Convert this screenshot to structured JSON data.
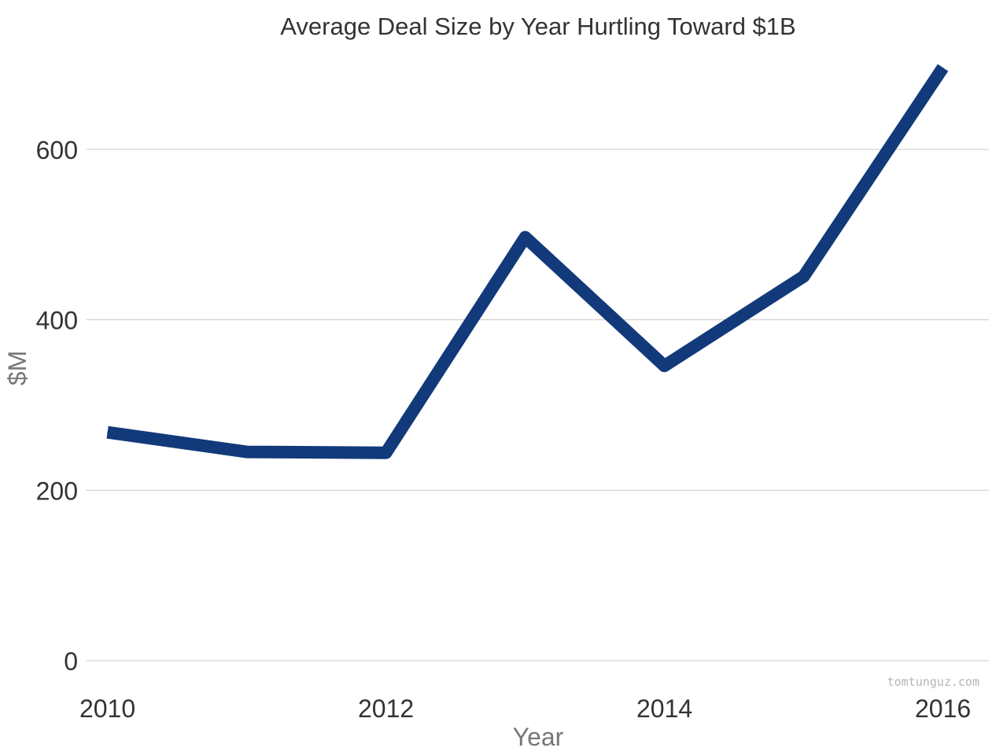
{
  "chart_data": {
    "type": "line",
    "title": "Average Deal Size by Year Hurtling Toward $1B",
    "xlabel": "Year",
    "ylabel": "$M",
    "x": [
      2010,
      2011,
      2012,
      2013,
      2014,
      2015,
      2016
    ],
    "series": [
      {
        "values": [
          268,
          245,
          244,
          497,
          346,
          451,
          696
        ]
      }
    ],
    "x_ticks": [
      2010,
      2012,
      2014,
      2016
    ],
    "y_ticks": [
      0,
      200,
      400,
      600
    ],
    "xlim": [
      2009.85,
      2016.33
    ],
    "ylim": [
      0,
      720
    ],
    "grid": true,
    "line_color": "#123a7a"
  },
  "watermark": "tomtunguz.com"
}
